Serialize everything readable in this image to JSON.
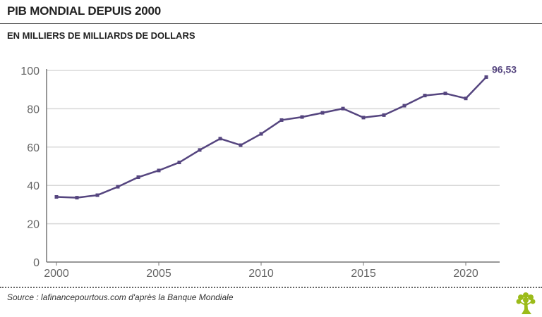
{
  "chart_data": {
    "type": "line",
    "title": "PIB MONDIAL DEPUIS 2000",
    "subtitle": "EN MILLIERS DE MILLIARDS DE DOLLARS",
    "x": [
      2000,
      2001,
      2002,
      2003,
      2004,
      2005,
      2006,
      2007,
      2008,
      2009,
      2010,
      2011,
      2012,
      2013,
      2014,
      2015,
      2016,
      2017,
      2018,
      2019,
      2020,
      2021
    ],
    "series": [
      {
        "values": [
          34.0,
          33.6,
          34.9,
          39.3,
          44.3,
          47.8,
          52.0,
          58.5,
          64.4,
          61.0,
          66.9,
          74.1,
          75.7,
          77.9,
          80.1,
          75.4,
          76.7,
          81.6,
          86.9,
          88.0,
          85.4,
          96.53
        ],
        "color": "#55457f"
      }
    ],
    "xticks": [
      "2000",
      "2005",
      "2010",
      "2015",
      "2020"
    ],
    "yticks": [
      "0",
      "20",
      "40",
      "60",
      "80",
      "100"
    ],
    "xlim": [
      2000,
      2021
    ],
    "ylim": [
      0,
      100
    ],
    "grid": true,
    "annotation": "96,53",
    "source": "Source : lafinancepourtous.com d'après la Banque Mondiale"
  },
  "colors": {
    "line": "#55457f",
    "grid": "#d8d8d8",
    "logo": "#9bbb1a"
  }
}
